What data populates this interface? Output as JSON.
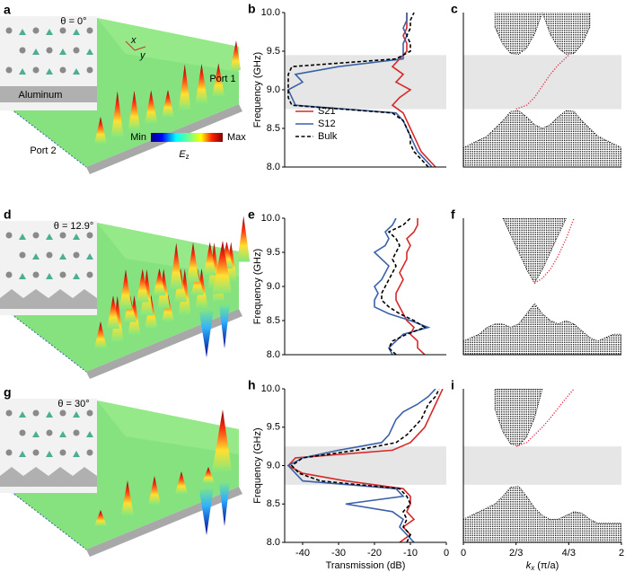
{
  "field_panels": [
    {
      "label": "a",
      "theta": "θ = 0°"
    },
    {
      "label": "d",
      "theta": "θ = 12.9°"
    },
    {
      "label": "g",
      "theta": "θ = 30°"
    }
  ],
  "panel_a": {
    "material": "Aluminum",
    "port1": "Port 1",
    "port2": "Port 2",
    "axis_x": "x",
    "axis_y": "y",
    "colorbar_min": "Min",
    "colorbar_max": "Max",
    "colorbar_label": {
      "main": "E",
      "sub": "z"
    }
  },
  "chart_data": [
    {
      "type": "line",
      "label": "b",
      "ylabel": "Frequency (GHz)",
      "y": [
        8,
        8.1,
        8.2,
        8.3,
        8.4,
        8.5,
        8.6,
        8.7,
        8.8,
        8.9,
        9,
        9.1,
        9.2,
        9.3,
        9.4,
        9.5,
        9.6,
        9.7,
        9.8,
        9.9,
        10
      ],
      "series": [
        {
          "name": "S21",
          "color": "#d62a2a",
          "values": [
            -3,
            -5,
            -7,
            -8,
            -9,
            -10,
            -11,
            -12,
            -15,
            -13,
            -10,
            -14,
            -12,
            -15,
            -13,
            -11,
            -11,
            -12,
            -11,
            -11,
            -11
          ]
        },
        {
          "name": "S12",
          "color": "#3b62a8",
          "values": [
            -4,
            -6,
            -8,
            -9,
            -10,
            -11,
            -12,
            -14,
            -42,
            -43,
            -44,
            -40,
            -42,
            -30,
            -12,
            -12,
            -12,
            -11,
            -12,
            -11,
            -11
          ]
        },
        {
          "name": "Bulk",
          "color": "#000000",
          "linestyle": "dashed",
          "values": [
            -5,
            -7,
            -9,
            -10,
            -10,
            -11,
            -12,
            -15,
            -43,
            -44,
            -44,
            -44,
            -44,
            -43,
            -14,
            -10,
            -10,
            -11,
            -10,
            -10,
            -9
          ]
        }
      ],
      "xlim": [
        -45,
        0
      ],
      "ylim": [
        8,
        10
      ],
      "yticks": [
        {
          "value": 8,
          "label": "8.0"
        },
        {
          "value": 8.5,
          "label": "8.5"
        },
        {
          "value": 9,
          "label": "9.0"
        },
        {
          "value": 9.5,
          "label": "9.5"
        },
        {
          "value": 10,
          "label": "10.0"
        }
      ],
      "shaded_band": [
        8.75,
        9.45
      ],
      "legend": "lower left"
    },
    {
      "type": "band_structure",
      "label": "c",
      "x": [
        0,
        0.1,
        0.2,
        0.3,
        0.4,
        0.5,
        0.6,
        0.7,
        0.8,
        0.9,
        1,
        1.1,
        1.2,
        1.3,
        1.4,
        1.5,
        1.6,
        1.7,
        1.8,
        1.9,
        2
      ],
      "series": [
        {
          "color": "#000000",
          "fill": "above",
          "values": [
            null,
            null,
            null,
            null,
            9.81,
            9.59,
            9.47,
            9.46,
            9.54,
            9.72,
            10,
            9.72,
            9.54,
            9.46,
            9.47,
            9.59,
            9.81,
            null,
            null,
            null,
            null
          ]
        },
        {
          "color": "#000000",
          "fill": "below",
          "values": [
            8.25,
            8.3,
            8.35,
            8.4,
            8.5,
            8.6,
            8.72,
            8.73,
            8.65,
            8.55,
            8.5,
            8.55,
            8.65,
            8.73,
            8.72,
            8.6,
            8.5,
            8.4,
            8.35,
            8.3,
            8.25
          ]
        },
        {
          "color": "#e0304a",
          "x": [
            0.6667,
            0.8,
            0.9,
            1,
            1.1,
            1.2,
            1.3333
          ],
          "values": [
            8.75,
            8.8,
            8.9,
            9.05,
            9.2,
            9.32,
            9.45
          ]
        }
      ],
      "xlim": [
        0,
        2
      ],
      "ylim": [
        8,
        10
      ],
      "shaded_band": [
        8.75,
        9.45
      ]
    },
    {
      "type": "line",
      "label": "e",
      "ylabel": "Frequency (GHz)",
      "y": [
        8,
        8.1,
        8.2,
        8.3,
        8.4,
        8.5,
        8.6,
        8.7,
        8.8,
        8.9,
        9,
        9.1,
        9.2,
        9.3,
        9.4,
        9.5,
        9.6,
        9.7,
        9.8,
        9.9,
        10
      ],
      "series": [
        {
          "color": "#d62a2a",
          "values": [
            -6,
            -8,
            -8,
            -10,
            -9,
            -11,
            -12,
            -13,
            -14,
            -14,
            -13,
            -12,
            -13,
            -12,
            -11,
            -11,
            -10,
            -11,
            -9,
            -8,
            -8
          ]
        },
        {
          "color": "#3b62a8",
          "values": [
            -15,
            -16,
            -14,
            -12,
            -5,
            -10,
            -16,
            -20,
            -20,
            -19,
            -20,
            -18,
            -17,
            -16,
            -18,
            -20,
            -17,
            -16,
            -17,
            -15,
            -14
          ]
        },
        {
          "color": "#000000",
          "linestyle": "dashed",
          "values": [
            -14,
            -16,
            -15,
            -11,
            -6,
            -9,
            -13,
            -16,
            -18,
            -18,
            -17,
            -16,
            -15,
            -14,
            -15,
            -14,
            -13,
            -14,
            -16,
            -12,
            -10
          ]
        }
      ],
      "xlim": [
        -45,
        0
      ],
      "ylim": [
        8,
        10
      ],
      "yticks": [
        {
          "value": 8,
          "label": "8.0"
        },
        {
          "value": 8.5,
          "label": "8.5"
        },
        {
          "value": 9,
          "label": "9.0"
        },
        {
          "value": 9.5,
          "label": "9.5"
        },
        {
          "value": 10,
          "label": "10.0"
        }
      ]
    },
    {
      "type": "band_structure",
      "label": "f",
      "x": [
        0,
        0.1,
        0.2,
        0.3,
        0.4,
        0.5,
        0.6,
        0.7,
        0.8,
        0.9,
        1,
        1.1,
        1.2,
        1.3,
        1.4,
        1.5,
        1.6,
        1.7,
        1.8,
        1.9,
        2
      ],
      "series": [
        {
          "color": "#000000",
          "fill": "above",
          "values": [
            null,
            null,
            null,
            null,
            null,
            10,
            9.75,
            9.5,
            9.25,
            9.05,
            9.25,
            9.5,
            9.75,
            10,
            null,
            null,
            null,
            null,
            null,
            null,
            null
          ]
        },
        {
          "color": "#000000",
          "fill": "below",
          "values": [
            8.2,
            8.25,
            8.3,
            8.4,
            8.45,
            8.45,
            8.4,
            8.45,
            8.6,
            8.75,
            8.6,
            8.5,
            8.45,
            8.5,
            8.45,
            8.35,
            8.25,
            8.2,
            8.25,
            8.3,
            8.3
          ]
        },
        {
          "color": "#e0304a",
          "x": [
            0.9,
            1,
            1.1,
            1.2,
            1.3,
            1.4
          ],
          "values": [
            9.05,
            9.12,
            9.25,
            9.45,
            9.7,
            10
          ]
        }
      ],
      "xlim": [
        0,
        2
      ],
      "ylim": [
        8,
        10
      ]
    },
    {
      "type": "line",
      "label": "h",
      "ylabel": "Frequency (GHz)",
      "xlabel": "Transmission (dB)",
      "y": [
        8,
        8.1,
        8.2,
        8.3,
        8.4,
        8.5,
        8.6,
        8.7,
        8.8,
        8.9,
        9,
        9.1,
        9.2,
        9.3,
        9.4,
        9.5,
        9.6,
        9.7,
        9.8,
        9.9,
        10
      ],
      "series": [
        {
          "color": "#d62a2a",
          "values": [
            -13,
            -10,
            -12,
            -9,
            -11,
            -10,
            -10,
            -12,
            -28,
            -40,
            -44,
            -42,
            -15,
            -10,
            -8,
            -6,
            -5,
            -4,
            -3,
            -2,
            -1
          ]
        },
        {
          "color": "#3b62a8",
          "values": [
            -9,
            -11,
            -13,
            -12,
            -15,
            -28,
            -12,
            -14,
            -40,
            -42,
            -44,
            -40,
            -30,
            -18,
            -16,
            -15,
            -14,
            -12,
            -8,
            -5,
            -3
          ]
        },
        {
          "color": "#000000",
          "linestyle": "dashed",
          "values": [
            -11,
            -10,
            -12,
            -11,
            -12,
            -10,
            -11,
            -13,
            -35,
            -41,
            -43,
            -40,
            -25,
            -14,
            -11,
            -9,
            -7,
            -6,
            -5,
            -3,
            -2
          ]
        }
      ],
      "xlim": [
        -45,
        0
      ],
      "ylim": [
        8,
        10
      ],
      "xticks": [
        -40,
        -30,
        -20,
        -10,
        0
      ],
      "yticks": [
        {
          "value": 8,
          "label": "8.0"
        },
        {
          "value": 8.5,
          "label": "8.5"
        },
        {
          "value": 9,
          "label": "9.0"
        },
        {
          "value": 9.5,
          "label": "9.5"
        },
        {
          "value": 10,
          "label": "10.0"
        }
      ],
      "shaded_band": [
        8.75,
        9.25
      ]
    },
    {
      "type": "band_structure",
      "label": "i",
      "x": [
        0,
        0.1,
        0.2,
        0.3,
        0.4,
        0.5,
        0.6,
        0.7,
        0.8,
        0.9,
        1,
        1.1,
        1.2,
        1.3,
        1.4,
        1.5,
        1.6,
        1.7,
        1.8,
        1.9,
        2
      ],
      "series": [
        {
          "color": "#000000",
          "fill": "above",
          "values": [
            null,
            null,
            null,
            null,
            9.73,
            9.44,
            9.28,
            9.26,
            9.37,
            9.62,
            10,
            null,
            null,
            null,
            null,
            null,
            null,
            null,
            null,
            null,
            null
          ]
        },
        {
          "color": "#000000",
          "fill": "below",
          "values": [
            8.3,
            8.35,
            8.4,
            8.45,
            8.5,
            8.6,
            8.72,
            8.73,
            8.6,
            8.45,
            8.35,
            8.3,
            8.3,
            8.35,
            8.4,
            8.38,
            8.3,
            8.25,
            8.25,
            8.25,
            8.25
          ]
        },
        {
          "color": "#e0304a",
          "x": [
            0.6667,
            0.8,
            0.9,
            1,
            1.1,
            1.2,
            1.3,
            1.4
          ],
          "values": [
            9.25,
            9.3,
            9.4,
            9.5,
            9.62,
            9.75,
            9.88,
            10
          ]
        }
      ],
      "xlim": [
        0,
        2
      ],
      "ylim": [
        8,
        10
      ],
      "xticks": [
        0,
        {
          "value": 0.6667,
          "label": "2/3"
        },
        {
          "value": 1.3333,
          "label": "4/3"
        },
        2
      ],
      "xlabel": {
        "main": "k",
        "sub": "x",
        "rest": "(π/a)"
      },
      "shaded_band": [
        8.75,
        9.25
      ]
    }
  ]
}
